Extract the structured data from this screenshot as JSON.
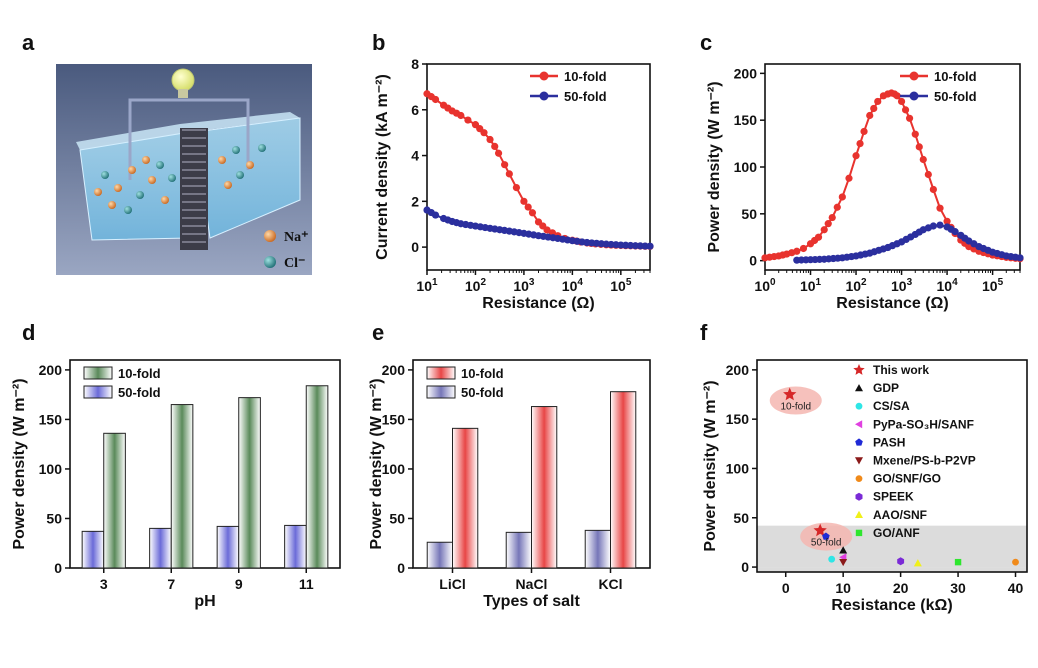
{
  "colors": {
    "red": "#e8332e",
    "blue": "#2b2f9e",
    "green_bar": "#5a8a5a",
    "blue_bar": "#6b6bd8",
    "red_bar": "#e84646"
  },
  "panel_a": {
    "letter": "a",
    "ion1": "Na⁺",
    "ion2": "Cl⁻",
    "ion1_color": "#e8862e",
    "ion2_color": "#2a8a8e"
  },
  "chart_data": [
    {
      "panel": "b",
      "type": "line",
      "xscale": "log",
      "xlabel": "Resistance (Ω)",
      "ylabel": "Current density (kA m⁻²)",
      "xlim": [
        10,
        400000
      ],
      "ylim": [
        -1,
        8
      ],
      "yticks": [
        0,
        2,
        4,
        6,
        8
      ],
      "xticks": [
        {
          "v": 10,
          "b": "10",
          "e": "1"
        },
        {
          "v": 100,
          "b": "10",
          "e": "2"
        },
        {
          "v": 1000,
          "b": "10",
          "e": "3"
        },
        {
          "v": 10000,
          "b": "10",
          "e": "4"
        },
        {
          "v": 100000,
          "b": "10",
          "e": "5"
        }
      ],
      "legend_position": "top-right",
      "series": [
        {
          "name": "10-fold",
          "color": "#e8332e",
          "x": [
            10,
            15,
            22,
            33,
            50,
            70,
            100,
            150,
            200,
            250,
            300,
            400,
            500,
            700,
            1000,
            1500,
            2000,
            3000,
            5000,
            7000,
            10000,
            15000,
            20000,
            30000,
            50000,
            100000,
            200000,
            400000
          ],
          "y": [
            6.7,
            6.45,
            6.2,
            5.95,
            5.75,
            5.55,
            5.35,
            5.0,
            4.7,
            4.4,
            4.1,
            3.6,
            3.2,
            2.6,
            2.0,
            1.5,
            1.1,
            0.75,
            0.5,
            0.38,
            0.3,
            0.22,
            0.18,
            0.14,
            0.1,
            0.07,
            0.05,
            0.03
          ]
        },
        {
          "name": "50-fold",
          "color": "#2b2f9e",
          "x": [
            10,
            15,
            22,
            33,
            50,
            100,
            200,
            500,
            1000,
            2000,
            5000,
            10000,
            20000,
            50000,
            100000,
            200000,
            400000
          ],
          "y": [
            1.62,
            1.4,
            1.25,
            1.12,
            1.02,
            0.92,
            0.82,
            0.7,
            0.6,
            0.5,
            0.38,
            0.28,
            0.2,
            0.13,
            0.09,
            0.06,
            0.04
          ]
        }
      ]
    },
    {
      "panel": "c",
      "type": "line",
      "xscale": "log",
      "xlabel": "Resistance (Ω)",
      "ylabel": "Power density (W m⁻²)",
      "xlim": [
        1,
        400000
      ],
      "ylim": [
        -10,
        210
      ],
      "yticks": [
        0,
        50,
        100,
        150,
        200
      ],
      "xticks": [
        {
          "v": 1,
          "b": "10",
          "e": "0"
        },
        {
          "v": 10,
          "b": "10",
          "e": "1"
        },
        {
          "v": 100,
          "b": "10",
          "e": "2"
        },
        {
          "v": 1000,
          "b": "10",
          "e": "3"
        },
        {
          "v": 10000,
          "b": "10",
          "e": "4"
        },
        {
          "v": 100000,
          "b": "10",
          "e": "5"
        }
      ],
      "legend_position": "top-right",
      "series": [
        {
          "name": "10-fold",
          "color": "#e8332e",
          "x": [
            1,
            2,
            3,
            5,
            7,
            10,
            15,
            20,
            30,
            50,
            70,
            100,
            150,
            200,
            300,
            400,
            500,
            600,
            700,
            800,
            1000,
            1500,
            2000,
            3000,
            5000,
            7000,
            10000,
            15000,
            20000,
            30000,
            50000,
            100000,
            200000,
            400000
          ],
          "y": [
            3,
            5,
            7,
            10,
            13,
            18,
            25,
            33,
            46,
            68,
            88,
            112,
            138,
            155,
            170,
            176,
            178,
            179,
            178,
            176,
            170,
            152,
            135,
            108,
            76,
            56,
            42,
            29,
            22,
            15,
            10,
            6,
            3.5,
            2
          ]
        },
        {
          "name": "50-fold",
          "color": "#2b2f9e",
          "x": [
            5,
            10,
            20,
            50,
            100,
            200,
            500,
            1000,
            2000,
            3000,
            5000,
            7000,
            10000,
            15000,
            20000,
            30000,
            50000,
            100000,
            200000,
            400000
          ],
          "y": [
            0.5,
            1,
            1.5,
            3,
            5,
            8,
            14,
            20,
            28,
            33,
            37,
            38,
            36,
            31,
            27,
            21,
            15,
            9,
            5,
            3
          ]
        }
      ]
    },
    {
      "panel": "d",
      "type": "bar",
      "xlabel": "pH",
      "ylabel": "Power density (W m⁻²)",
      "categories": [
        "3",
        "7",
        "9",
        "11"
      ],
      "ylim": [
        0,
        210
      ],
      "yticks": [
        0,
        50,
        100,
        150,
        200
      ],
      "legend_position": "top-left",
      "series": [
        {
          "name": "10-fold",
          "color": "#5a8a5a",
          "values": [
            136,
            165,
            172,
            184
          ]
        },
        {
          "name": "50-fold",
          "color": "#6b6bd8",
          "values": [
            37,
            40,
            42,
            43
          ]
        }
      ]
    },
    {
      "panel": "e",
      "type": "bar",
      "xlabel": "Types of salt",
      "ylabel": "Power density (W m⁻²)",
      "categories": [
        "LiCl",
        "NaCl",
        "KCl"
      ],
      "ylim": [
        0,
        210
      ],
      "yticks": [
        0,
        50,
        100,
        150,
        200
      ],
      "legend_position": "top-left",
      "series": [
        {
          "name": "10-fold",
          "color": "#e84646",
          "values": [
            141,
            163,
            178
          ]
        },
        {
          "name": "50-fold",
          "color": "#7676b8",
          "values": [
            26,
            36,
            38
          ]
        }
      ]
    },
    {
      "panel": "f",
      "type": "scatter",
      "xlabel": "Resistance (kΩ)",
      "ylabel": "Power density (W m⁻²)",
      "xlim": [
        -5,
        42
      ],
      "ylim": [
        -5,
        210
      ],
      "xticks": [
        0,
        10,
        20,
        30,
        40
      ],
      "yticks": [
        0,
        50,
        100,
        150,
        200
      ],
      "shaded_band": [
        0,
        42
      ],
      "annotations": [
        {
          "text": "10-fold",
          "x": 0.7,
          "y": 175
        },
        {
          "text": "50-fold",
          "x": 6,
          "y": 37
        }
      ],
      "legend_position": "top-right",
      "series": [
        {
          "name": "This work",
          "marker": "star",
          "color": "#d62728",
          "points": [
            [
              0.7,
              175
            ],
            [
              6,
              37
            ]
          ]
        },
        {
          "name": "GDP",
          "marker": "triangle-up",
          "color": "#111111",
          "points": [
            [
              10,
              17
            ]
          ]
        },
        {
          "name": "CS/SA",
          "marker": "circle",
          "color": "#2ee6e6",
          "points": [
            [
              8,
              8
            ]
          ]
        },
        {
          "name": "PyPa-SO₃H/SANF",
          "marker": "triangle-left",
          "color": "#e040e0",
          "points": [
            [
              10,
              10
            ]
          ]
        },
        {
          "name": "PASH",
          "marker": "pentagon",
          "color": "#1f2ad6",
          "points": [
            [
              7,
              31
            ]
          ]
        },
        {
          "name": "Mxene/PS-b-P2VP",
          "marker": "triangle-down",
          "color": "#8b1a1a",
          "points": [
            [
              10,
              5
            ]
          ]
        },
        {
          "name": "GO/SNF/GO",
          "marker": "circle",
          "color": "#f08a1a",
          "points": [
            [
              40,
              5
            ]
          ]
        },
        {
          "name": "SPEEK",
          "marker": "hexagon",
          "color": "#7a2ad6",
          "points": [
            [
              20,
              6
            ]
          ]
        },
        {
          "name": "AAO/SNF",
          "marker": "triangle-up",
          "color": "#f0f01a",
          "points": [
            [
              23,
              4
            ]
          ]
        },
        {
          "name": "GO/ANF",
          "marker": "square",
          "color": "#2ee62e",
          "points": [
            [
              30,
              5
            ]
          ]
        }
      ]
    }
  ]
}
